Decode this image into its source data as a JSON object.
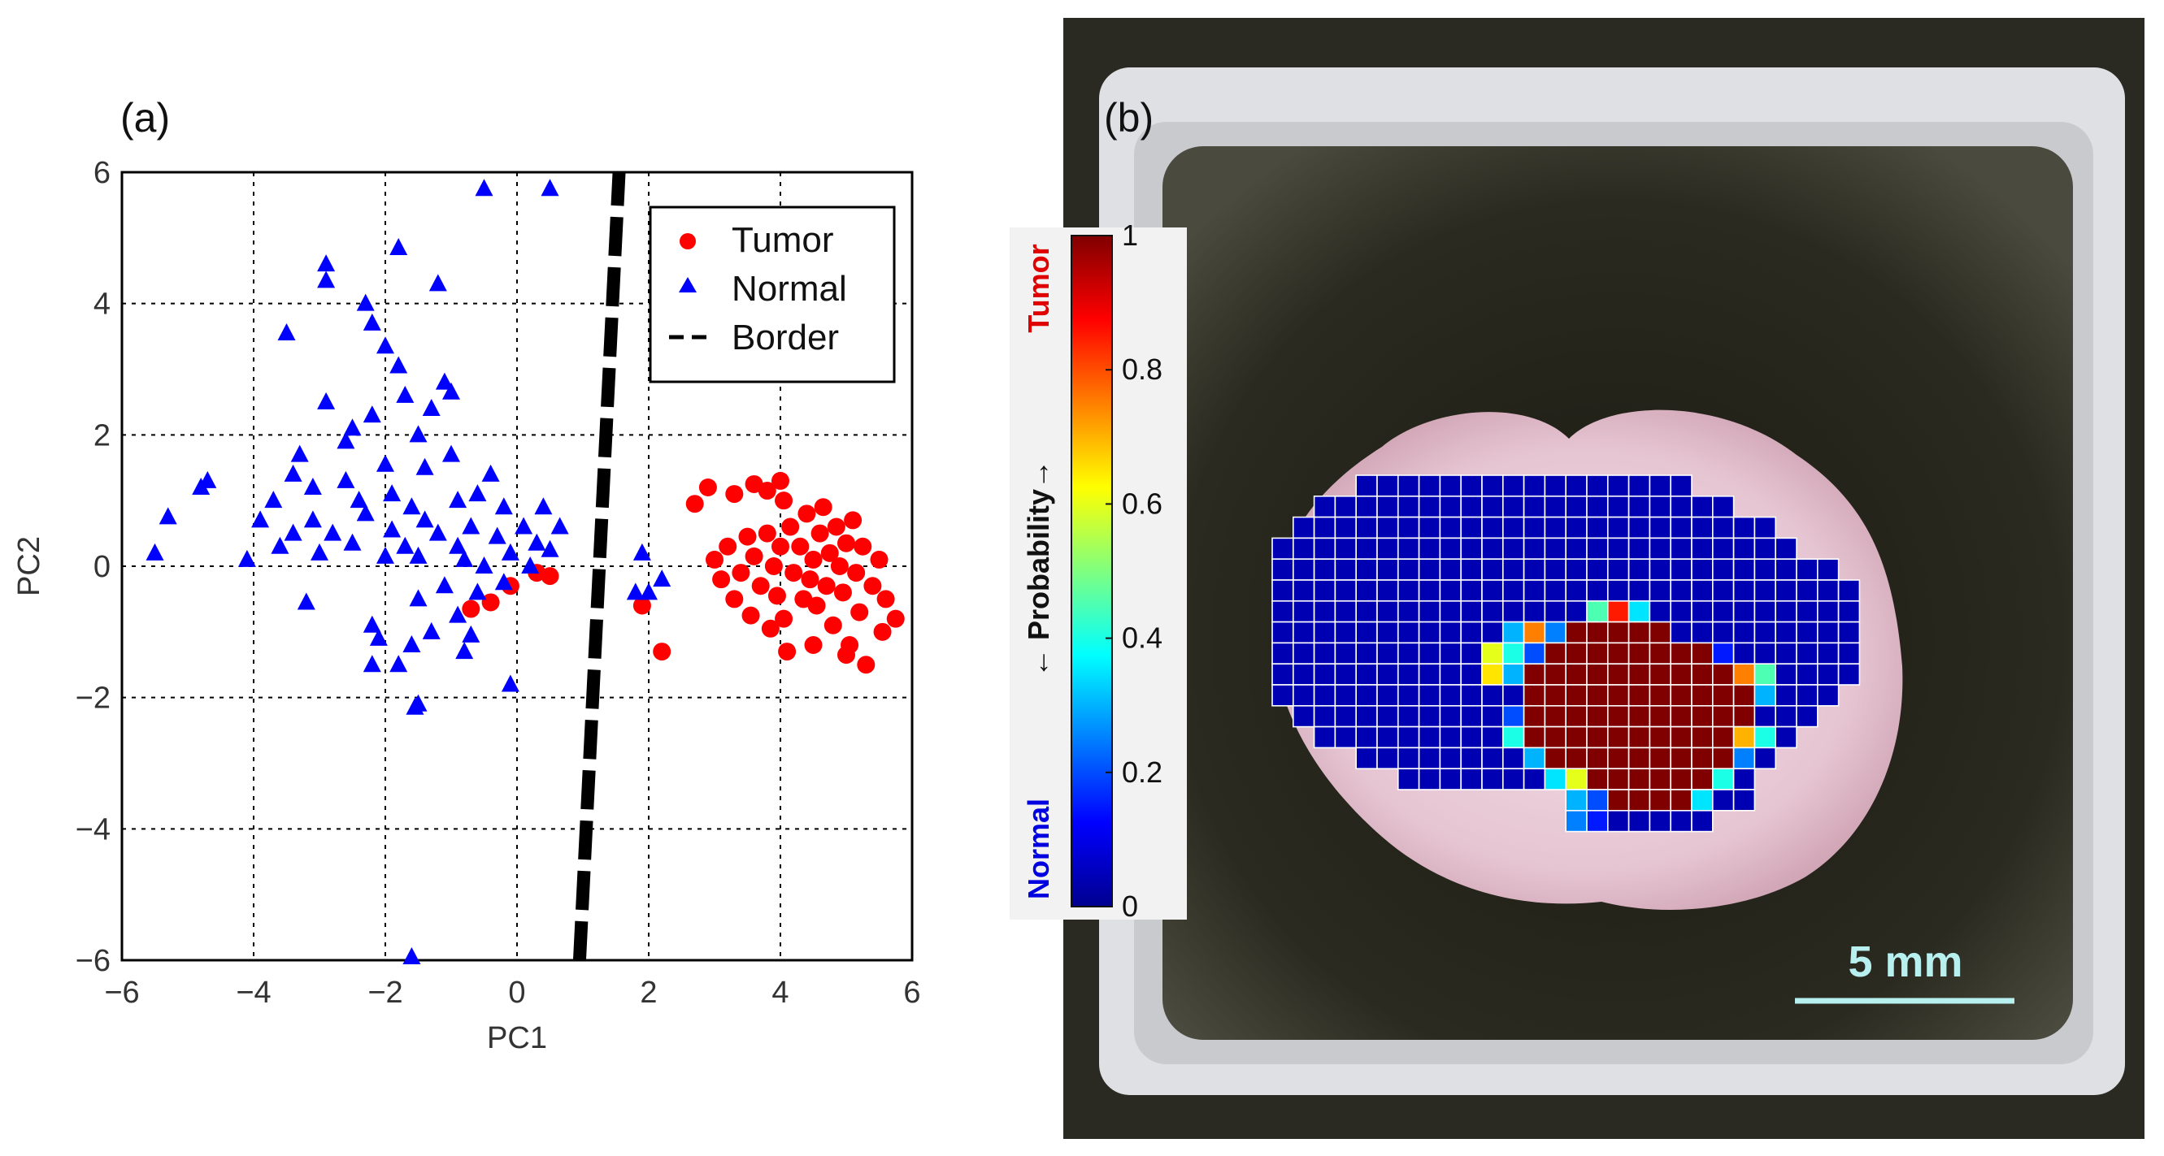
{
  "panel_a": {
    "label": "(a)",
    "chart_data": {
      "type": "scatter",
      "xlabel": "PC1",
      "ylabel": "PC2",
      "xlim": [
        -6,
        6
      ],
      "ylim": [
        -6,
        6
      ],
      "xticks": [
        -6,
        -4,
        -2,
        0,
        2,
        4,
        6
      ],
      "yticks": [
        -6,
        -4,
        -2,
        0,
        2,
        4,
        6
      ],
      "grid": true,
      "legend_position": "top-right",
      "series": [
        {
          "name": "Tumor",
          "marker": "circle",
          "color": "#ff0000",
          "points": [
            [
              -0.7,
              -0.65
            ],
            [
              -0.4,
              -0.55
            ],
            [
              -0.1,
              -0.3
            ],
            [
              0.3,
              -0.1
            ],
            [
              0.5,
              -0.15
            ],
            [
              1.9,
              -0.6
            ],
            [
              2.2,
              -1.3
            ],
            [
              2.7,
              0.95
            ],
            [
              2.9,
              1.2
            ],
            [
              3.3,
              1.1
            ],
            [
              3.6,
              1.25
            ],
            [
              3.8,
              1.15
            ],
            [
              4.0,
              1.3
            ],
            [
              4.05,
              1.0
            ],
            [
              3.0,
              0.1
            ],
            [
              3.1,
              -0.2
            ],
            [
              3.2,
              0.3
            ],
            [
              3.3,
              -0.5
            ],
            [
              3.4,
              -0.1
            ],
            [
              3.5,
              0.45
            ],
            [
              3.55,
              -0.75
            ],
            [
              3.6,
              0.15
            ],
            [
              3.7,
              -0.3
            ],
            [
              3.8,
              0.5
            ],
            [
              3.85,
              -0.95
            ],
            [
              3.9,
              0.0
            ],
            [
              3.95,
              -0.45
            ],
            [
              4.0,
              0.3
            ],
            [
              4.05,
              -0.8
            ],
            [
              4.1,
              -1.3
            ],
            [
              4.15,
              0.6
            ],
            [
              4.2,
              -0.1
            ],
            [
              4.3,
              0.3
            ],
            [
              4.35,
              -0.5
            ],
            [
              4.4,
              0.8
            ],
            [
              4.45,
              -0.2
            ],
            [
              4.5,
              0.1
            ],
            [
              4.55,
              -0.6
            ],
            [
              4.6,
              0.5
            ],
            [
              4.65,
              0.9
            ],
            [
              4.7,
              -0.3
            ],
            [
              4.75,
              0.2
            ],
            [
              4.8,
              -0.9
            ],
            [
              4.85,
              0.6
            ],
            [
              4.9,
              0.0
            ],
            [
              4.95,
              -0.4
            ],
            [
              5.0,
              0.35
            ],
            [
              5.05,
              -1.2
            ],
            [
              5.1,
              0.7
            ],
            [
              5.15,
              -0.1
            ],
            [
              5.2,
              -0.7
            ],
            [
              5.25,
              0.3
            ],
            [
              5.3,
              -1.5
            ],
            [
              5.4,
              -0.3
            ],
            [
              5.5,
              0.1
            ],
            [
              5.55,
              -1.0
            ],
            [
              5.6,
              -0.5
            ],
            [
              5.75,
              -0.8
            ],
            [
              4.5,
              -1.2
            ],
            [
              5.0,
              -1.35
            ]
          ]
        },
        {
          "name": "Normal",
          "marker": "triangle",
          "color": "#0000ff",
          "points": [
            [
              -0.5,
              5.75
            ],
            [
              0.5,
              5.75
            ],
            [
              -1.8,
              4.85
            ],
            [
              -2.9,
              4.6
            ],
            [
              -2.9,
              4.35
            ],
            [
              -1.2,
              4.3
            ],
            [
              -2.3,
              4.0
            ],
            [
              -2.2,
              3.7
            ],
            [
              -3.5,
              3.55
            ],
            [
              -2.0,
              3.35
            ],
            [
              -1.8,
              3.05
            ],
            [
              -1.1,
              2.8
            ],
            [
              -1.7,
              2.6
            ],
            [
              -1.0,
              2.65
            ],
            [
              -2.9,
              2.5
            ],
            [
              -1.3,
              2.4
            ],
            [
              -2.2,
              2.3
            ],
            [
              -2.5,
              2.1
            ],
            [
              -1.5,
              2.0
            ],
            [
              -2.6,
              1.9
            ],
            [
              -1.0,
              1.7
            ],
            [
              -3.3,
              1.7
            ],
            [
              -2.0,
              1.55
            ],
            [
              -1.4,
              1.5
            ],
            [
              -0.4,
              1.4
            ],
            [
              -3.4,
              1.4
            ],
            [
              -2.6,
              1.3
            ],
            [
              -3.1,
              1.2
            ],
            [
              -0.6,
              1.1
            ],
            [
              -1.9,
              1.1
            ],
            [
              -4.7,
              1.3
            ],
            [
              -4.8,
              1.2
            ],
            [
              -3.7,
              1.0
            ],
            [
              -2.4,
              1.0
            ],
            [
              -1.6,
              0.9
            ],
            [
              -0.9,
              1.0
            ],
            [
              -0.2,
              0.9
            ],
            [
              0.4,
              0.9
            ],
            [
              -5.3,
              0.75
            ],
            [
              -3.9,
              0.7
            ],
            [
              -3.1,
              0.7
            ],
            [
              -2.3,
              0.8
            ],
            [
              -1.4,
              0.7
            ],
            [
              -0.7,
              0.6
            ],
            [
              0.1,
              0.6
            ],
            [
              0.65,
              0.6
            ],
            [
              -3.4,
              0.5
            ],
            [
              -2.8,
              0.5
            ],
            [
              -1.9,
              0.55
            ],
            [
              -1.2,
              0.5
            ],
            [
              -0.3,
              0.45
            ],
            [
              0.3,
              0.35
            ],
            [
              -3.6,
              0.3
            ],
            [
              -2.5,
              0.35
            ],
            [
              -1.7,
              0.3
            ],
            [
              -0.9,
              0.3
            ],
            [
              -0.1,
              0.2
            ],
            [
              0.5,
              0.25
            ],
            [
              -4.1,
              0.1
            ],
            [
              -5.5,
              0.2
            ],
            [
              -3.0,
              0.2
            ],
            [
              -2.0,
              0.15
            ],
            [
              -1.5,
              0.15
            ],
            [
              -0.8,
              0.1
            ],
            [
              -0.5,
              0.0
            ],
            [
              0.2,
              0.0
            ],
            [
              -1.1,
              -0.3
            ],
            [
              -0.6,
              -0.4
            ],
            [
              -0.2,
              -0.25
            ],
            [
              -3.2,
              -0.55
            ],
            [
              -1.5,
              -0.5
            ],
            [
              -0.9,
              -0.75
            ],
            [
              -2.2,
              -0.9
            ],
            [
              -1.3,
              -1.0
            ],
            [
              -0.7,
              -1.05
            ],
            [
              -2.1,
              -1.1
            ],
            [
              -1.6,
              -1.2
            ],
            [
              -0.8,
              -1.3
            ],
            [
              -1.8,
              -1.5
            ],
            [
              -2.2,
              -1.5
            ],
            [
              -0.1,
              -1.8
            ],
            [
              -1.5,
              -2.1
            ],
            [
              -1.55,
              -2.15
            ],
            [
              1.8,
              -0.4
            ],
            [
              2.0,
              -0.4
            ],
            [
              2.2,
              -0.2
            ],
            [
              1.9,
              0.2
            ],
            [
              -1.6,
              -5.95
            ]
          ]
        }
      ],
      "border_line": {
        "name": "Border",
        "points": [
          [
            0.95,
            -6
          ],
          [
            1.55,
            6
          ]
        ]
      }
    }
  },
  "panel_b": {
    "label": "(b)",
    "colorbar": {
      "ticks": [
        "1",
        "0.8",
        "0.6",
        "0.4",
        "0.2",
        "0"
      ],
      "top_label": "Tumor",
      "top_label_color": "#e00000",
      "bottom_label": "Normal",
      "bottom_label_color": "#0000e0",
      "axis_label": "← Probability→"
    },
    "scale_bar": {
      "text": "5 mm",
      "color": "#b8f0f0"
    },
    "heatmap_grid": {
      "rows": [
        "....XXXXXXXXXXXXXXXX.....",
        "..XXXXXXXXXXXXXXXXXXXX...",
        ".XXXXXXXXXXXXXXXXXXXXXXX.",
        "XXXXXXXXXXXXXXXXXXXXXXXXX",
        "XXXXXXXXXXXXXXXXXXXXXXXXXXX",
        "XXXXXXXXXXXXXXXXXXXXXXXXXXXX",
        "XXXXXXXXXXXXXXXXXXXXXXXXXXXX",
        "XXXXXXXXXXXXXXXXXXXXXXXXXXXX",
        "XXXXXXXXXXXXXXXXXXXXXXXXXXXX",
        "XXXXXXXXXXXXXXXXXXXXXXXXXXXX",
        "XXXXXXXXXXXXXXXXXXXXXXXXXXX.",
        ".XXXXXXXXXXXXXXXXXXXXXXXXX..",
        "..XXXXXXXXXXXXXXXXXXXXXXX...",
        "....XXXXXXXXXXXXXXXXXXXX....",
        "......XXXXXXXXXXXXXXXXX.....",
        "..............XXXXXXXXX.....",
        "..............XXXXXXX......."
      ],
      "tumor_cells": [
        [
          7,
          14
        ],
        [
          7,
          15
        ],
        [
          7,
          16
        ],
        [
          7,
          17
        ],
        [
          7,
          18
        ],
        [
          8,
          12
        ],
        [
          8,
          13
        ],
        [
          8,
          14
        ],
        [
          8,
          15
        ],
        [
          8,
          16
        ],
        [
          8,
          17
        ],
        [
          8,
          18
        ],
        [
          8,
          19
        ],
        [
          8,
          20
        ],
        [
          9,
          12
        ],
        [
          9,
          13
        ],
        [
          9,
          14
        ],
        [
          9,
          15
        ],
        [
          9,
          16
        ],
        [
          9,
          17
        ],
        [
          9,
          18
        ],
        [
          9,
          19
        ],
        [
          9,
          20
        ],
        [
          9,
          21
        ],
        [
          10,
          12
        ],
        [
          10,
          13
        ],
        [
          10,
          14
        ],
        [
          10,
          15
        ],
        [
          10,
          16
        ],
        [
          10,
          17
        ],
        [
          10,
          18
        ],
        [
          10,
          19
        ],
        [
          10,
          20
        ],
        [
          10,
          21
        ],
        [
          10,
          22
        ],
        [
          11,
          12
        ],
        [
          11,
          13
        ],
        [
          11,
          14
        ],
        [
          11,
          15
        ],
        [
          11,
          16
        ],
        [
          11,
          17
        ],
        [
          11,
          18
        ],
        [
          11,
          19
        ],
        [
          11,
          20
        ],
        [
          11,
          21
        ],
        [
          11,
          22
        ],
        [
          12,
          12
        ],
        [
          12,
          13
        ],
        [
          12,
          14
        ],
        [
          12,
          15
        ],
        [
          12,
          16
        ],
        [
          12,
          17
        ],
        [
          12,
          18
        ],
        [
          12,
          19
        ],
        [
          12,
          20
        ],
        [
          12,
          21
        ],
        [
          12,
          22
        ],
        [
          13,
          13
        ],
        [
          13,
          14
        ],
        [
          13,
          15
        ],
        [
          13,
          16
        ],
        [
          13,
          17
        ],
        [
          13,
          18
        ],
        [
          13,
          19
        ],
        [
          13,
          20
        ],
        [
          13,
          21
        ],
        [
          14,
          15
        ],
        [
          14,
          16
        ],
        [
          14,
          17
        ],
        [
          14,
          18
        ],
        [
          14,
          19
        ],
        [
          14,
          20
        ],
        [
          15,
          16
        ],
        [
          15,
          17
        ],
        [
          15,
          18
        ],
        [
          15,
          19
        ]
      ],
      "mid_cells": [
        [
          6,
          15,
          0.45
        ],
        [
          6,
          16,
          0.85
        ],
        [
          6,
          17,
          0.35
        ],
        [
          7,
          11,
          0.3
        ],
        [
          7,
          12,
          0.75
        ],
        [
          7,
          13,
          0.25
        ],
        [
          8,
          10,
          0.6
        ],
        [
          8,
          11,
          0.4
        ],
        [
          8,
          12,
          0.2
        ],
        [
          8,
          21,
          0.15
        ],
        [
          9,
          10,
          0.65
        ],
        [
          9,
          11,
          0.3
        ],
        [
          9,
          22,
          0.75
        ],
        [
          9,
          23,
          0.45
        ],
        [
          10,
          23,
          0.3
        ],
        [
          11,
          11,
          0.2
        ],
        [
          12,
          11,
          0.4
        ],
        [
          12,
          23,
          0.4
        ],
        [
          12,
          22,
          0.7
        ],
        [
          13,
          12,
          0.3
        ],
        [
          13,
          22,
          0.25
        ],
        [
          14,
          13,
          0.35
        ],
        [
          14,
          14,
          0.6
        ],
        [
          14,
          21,
          0.4
        ],
        [
          15,
          13,
          0.7
        ],
        [
          15,
          14,
          0.3
        ],
        [
          15,
          20,
          0.35
        ],
        [
          15,
          15,
          0.2
        ],
        [
          16,
          14,
          0.25
        ],
        [
          16,
          15,
          0.15
        ]
      ]
    }
  }
}
